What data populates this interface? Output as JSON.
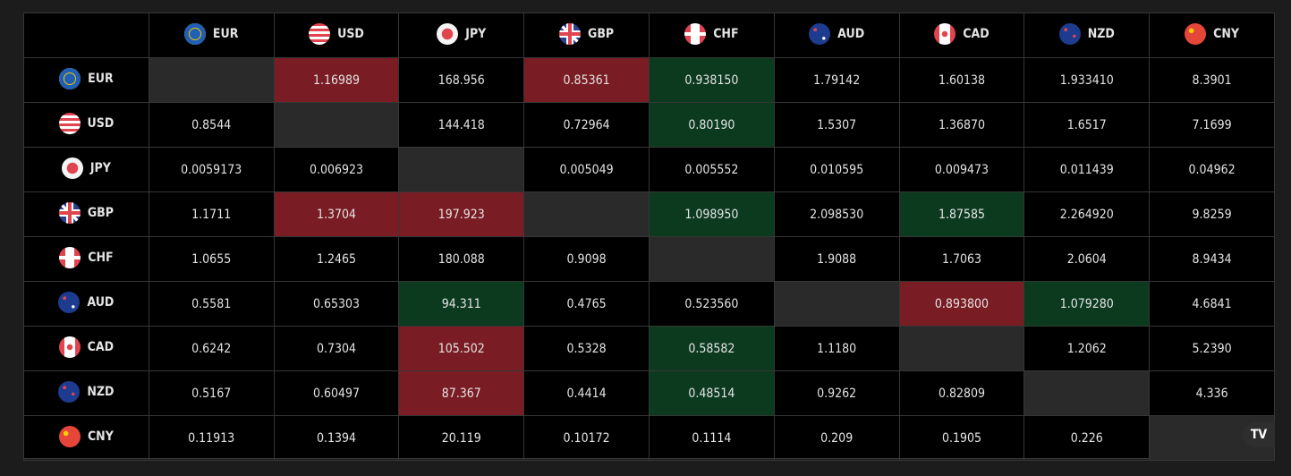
{
  "currencies": [
    "EUR",
    "USD",
    "JPY",
    "GBP",
    "CHF",
    "AUD",
    "CAD",
    "NZD",
    "CNY"
  ],
  "flags": {
    "EUR": "eu-flag-icon",
    "USD": "us-flag-icon",
    "JPY": "jp-flag-icon",
    "GBP": "gb-flag-icon",
    "CHF": "ch-flag-icon",
    "AUD": "au-flag-icon",
    "CAD": "ca-flag-icon",
    "NZD": "nz-flag-icon",
    "CNY": "cn-flag-icon"
  },
  "colors": {
    "down": "#7a1c23",
    "up": "#0b3a1f",
    "self": "#2a2a2a",
    "background": "#000000"
  },
  "rows": [
    {
      "base": "EUR",
      "cells": [
        [
          "",
          "self"
        ],
        [
          "1.16989",
          "down"
        ],
        [
          "168.956",
          ""
        ],
        [
          "0.85361",
          "down"
        ],
        [
          "0.938150",
          "up"
        ],
        [
          "1.79142",
          ""
        ],
        [
          "1.60138",
          ""
        ],
        [
          "1.933410",
          ""
        ],
        [
          "8.3901",
          ""
        ]
      ]
    },
    {
      "base": "USD",
      "cells": [
        [
          "0.8544",
          ""
        ],
        [
          "",
          "self"
        ],
        [
          "144.418",
          ""
        ],
        [
          "0.72964",
          ""
        ],
        [
          "0.80190",
          "up"
        ],
        [
          "1.5307",
          ""
        ],
        [
          "1.36870",
          ""
        ],
        [
          "1.6517",
          ""
        ],
        [
          "7.1699",
          ""
        ]
      ]
    },
    {
      "base": "JPY",
      "cells": [
        [
          "0.0059173",
          ""
        ],
        [
          "0.006923",
          ""
        ],
        [
          "",
          "self"
        ],
        [
          "0.005049",
          ""
        ],
        [
          "0.005552",
          ""
        ],
        [
          "0.010595",
          ""
        ],
        [
          "0.009473",
          ""
        ],
        [
          "0.011439",
          ""
        ],
        [
          "0.04962",
          ""
        ]
      ]
    },
    {
      "base": "GBP",
      "cells": [
        [
          "1.1711",
          ""
        ],
        [
          "1.3704",
          "down"
        ],
        [
          "197.923",
          "down"
        ],
        [
          "",
          "self"
        ],
        [
          "1.098950",
          "up"
        ],
        [
          "2.098530",
          ""
        ],
        [
          "1.87585",
          "up"
        ],
        [
          "2.264920",
          ""
        ],
        [
          "9.8259",
          ""
        ]
      ]
    },
    {
      "base": "CHF",
      "cells": [
        [
          "1.0655",
          ""
        ],
        [
          "1.2465",
          ""
        ],
        [
          "180.088",
          ""
        ],
        [
          "0.9098",
          ""
        ],
        [
          "",
          "self"
        ],
        [
          "1.9088",
          ""
        ],
        [
          "1.7063",
          ""
        ],
        [
          "2.0604",
          ""
        ],
        [
          "8.9434",
          ""
        ]
      ]
    },
    {
      "base": "AUD",
      "cells": [
        [
          "0.5581",
          ""
        ],
        [
          "0.65303",
          ""
        ],
        [
          "94.311",
          "up"
        ],
        [
          "0.4765",
          ""
        ],
        [
          "0.523560",
          ""
        ],
        [
          "",
          "self"
        ],
        [
          "0.893800",
          "down"
        ],
        [
          "1.079280",
          "up"
        ],
        [
          "4.6841",
          ""
        ]
      ]
    },
    {
      "base": "CAD",
      "cells": [
        [
          "0.6242",
          ""
        ],
        [
          "0.7304",
          ""
        ],
        [
          "105.502",
          "down"
        ],
        [
          "0.5328",
          ""
        ],
        [
          "0.58582",
          "up"
        ],
        [
          "1.1180",
          ""
        ],
        [
          "",
          "self"
        ],
        [
          "1.2062",
          ""
        ],
        [
          "5.2390",
          ""
        ]
      ]
    },
    {
      "base": "NZD",
      "cells": [
        [
          "0.5167",
          ""
        ],
        [
          "0.60497",
          ""
        ],
        [
          "87.367",
          "down"
        ],
        [
          "0.4414",
          ""
        ],
        [
          "0.48514",
          "up"
        ],
        [
          "0.9262",
          ""
        ],
        [
          "0.82809",
          ""
        ],
        [
          "",
          "self"
        ],
        [
          "4.336",
          ""
        ]
      ]
    },
    {
      "base": "CNY",
      "cells": [
        [
          "0.11913",
          ""
        ],
        [
          "0.1394",
          ""
        ],
        [
          "20.119",
          ""
        ],
        [
          "0.10172",
          ""
        ],
        [
          "0.1114",
          ""
        ],
        [
          "0.209",
          ""
        ],
        [
          "0.1905",
          ""
        ],
        [
          "0.226",
          ""
        ],
        [
          "",
          "self"
        ]
      ]
    }
  ],
  "badge": {
    "label": "TV",
    "icon": "tradingview-logo-icon"
  }
}
